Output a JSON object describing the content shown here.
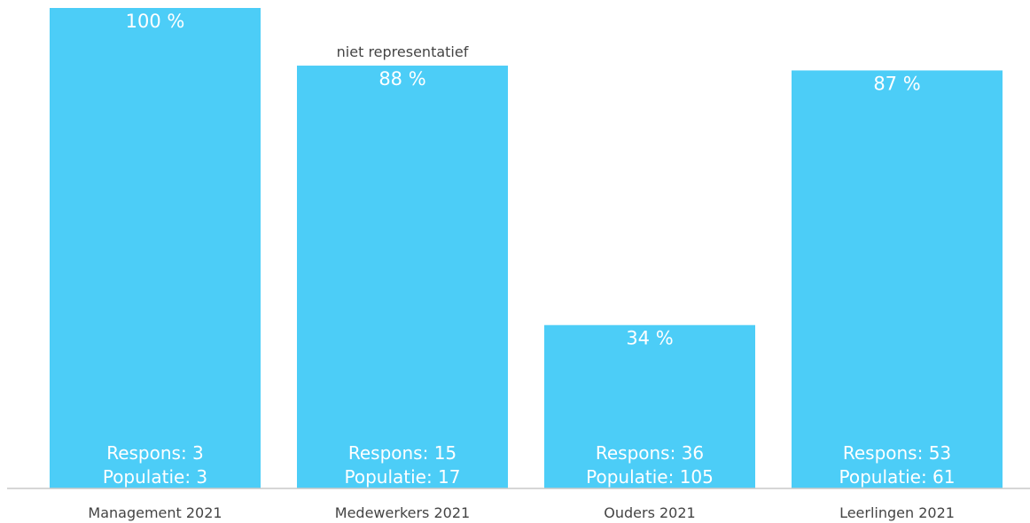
{
  "chart_data": {
    "type": "bar",
    "categories": [
      "Management 2021",
      "Medewerkers 2021",
      "Ouders 2021",
      "Leerlingen 2021"
    ],
    "values": [
      100,
      88,
      34,
      87
    ],
    "value_labels": [
      "100 %",
      "88 %",
      "34 %",
      "87 %"
    ],
    "respons_labels": [
      "Respons: 3",
      "Respons: 15",
      "Respons: 36",
      "Respons: 53"
    ],
    "populatie_labels": [
      "Populatie: 3",
      "Populatie: 17",
      "Populatie: 105",
      "Populatie: 61"
    ],
    "notes": [
      "",
      "niet representatief",
      "",
      ""
    ],
    "ylim": [
      0,
      100
    ],
    "grid": false,
    "bar_color": "#4ccdf7"
  }
}
